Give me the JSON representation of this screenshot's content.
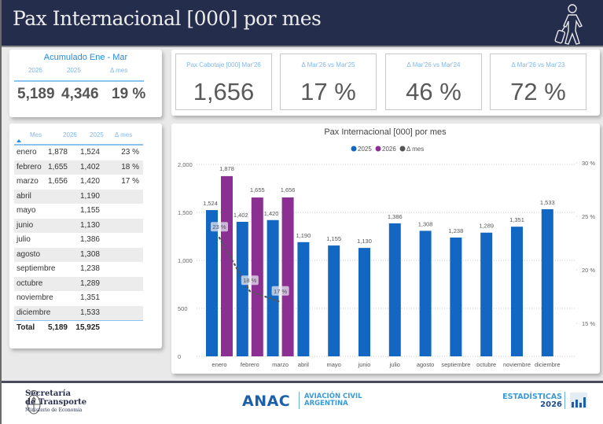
{
  "header": {
    "title": "Pax Internacional [000] por mes",
    "icon": "traveler-with-suitcase-icon"
  },
  "accumulated": {
    "title": "Acumulado Ene - Mar",
    "columns": [
      "2026",
      "2025",
      "Δ mes"
    ],
    "values": [
      "5,189",
      "4,346",
      "19 %"
    ]
  },
  "kpis": [
    {
      "label": "Pax Cabotaje [000] Mar'26",
      "value": "1,656"
    },
    {
      "label": "Δ Mar'26 vs Mar'25",
      "value": "17 %"
    },
    {
      "label": "Δ Mar'26 vs Mar'24",
      "value": "46 %"
    },
    {
      "label": "Δ Mar'26 vs Mar'23",
      "value": "72 %"
    }
  ],
  "table": {
    "columns": [
      "Mes",
      "2026",
      "2025",
      "Δ mes"
    ],
    "rows": [
      [
        "enero",
        "1,878",
        "1,524",
        "23 %"
      ],
      [
        "febrero",
        "1,655",
        "1,402",
        "18 %"
      ],
      [
        "marzo",
        "1,656",
        "1,420",
        "17 %"
      ],
      [
        "abril",
        "",
        "1,190",
        ""
      ],
      [
        "mayo",
        "",
        "1,155",
        ""
      ],
      [
        "junio",
        "",
        "1,130",
        ""
      ],
      [
        "julio",
        "",
        "1,386",
        ""
      ],
      [
        "agosto",
        "",
        "1,308",
        ""
      ],
      [
        "septiembre",
        "",
        "1,238",
        ""
      ],
      [
        "octubre",
        "",
        "1,289",
        ""
      ],
      [
        "noviembre",
        "",
        "1,351",
        ""
      ],
      [
        "diciembre",
        "",
        "1,533",
        ""
      ]
    ],
    "total": [
      "Total",
      "5,189",
      "15,925",
      ""
    ]
  },
  "chart_data": {
    "type": "bar",
    "title": "Pax Internacional [000] por mes",
    "categories": [
      "enero",
      "febrero",
      "marzo",
      "abril",
      "mayo",
      "junio",
      "julio",
      "agosto",
      "septiembre",
      "octubre",
      "noviembre",
      "diciembre"
    ],
    "series": [
      {
        "name": "2025",
        "color": "#1267c2",
        "values": [
          1524,
          1402,
          1420,
          1190,
          1155,
          1130,
          1386,
          1308,
          1238,
          1289,
          1351,
          1533
        ],
        "labels": [
          "1,524",
          "1,402",
          "1,420",
          "1,190",
          "1,155",
          "1,130",
          "1,386",
          "1,308",
          "1,238",
          "1,289",
          "1,351",
          "1,533"
        ]
      },
      {
        "name": "2026",
        "color": "#8b2f93",
        "values": [
          1878,
          1655,
          1656,
          null,
          null,
          null,
          null,
          null,
          null,
          null,
          null,
          null
        ],
        "labels": [
          "1,878",
          "1,655",
          "1,656",
          "",
          "",
          "",
          "",
          "",
          "",
          "",
          "",
          ""
        ]
      },
      {
        "name": "Δ mes",
        "color": "#555555",
        "type": "line",
        "axis": "right",
        "values": [
          23,
          18,
          17,
          null,
          null,
          null,
          null,
          null,
          null,
          null,
          null,
          null
        ],
        "labels": [
          "23 %",
          "18 %",
          "17 %",
          "",
          "",
          "",
          "",
          "",
          "",
          "",
          "",
          ""
        ]
      }
    ],
    "y_left": {
      "ticks": [
        0,
        500,
        1000,
        1500,
        2000
      ],
      "tick_labels": [
        "0",
        "500",
        "1,000",
        "1,500",
        "2,000"
      ],
      "ylim": [
        0,
        2000
      ]
    },
    "y_right": {
      "ticks": [
        15,
        20,
        25,
        30
      ],
      "tick_labels": [
        "15 %",
        "20 %",
        "25 %",
        "30 %"
      ],
      "ylim": [
        11,
        30
      ]
    },
    "legend": "top-center",
    "grid": true
  },
  "footer": {
    "secretaria_lines": [
      "Secretaría",
      "de Transporte",
      "Ministerio de Economía"
    ],
    "anac": "ANAC",
    "anac_sub": [
      "AVIACIÓN CIVIL",
      "ARGENTINA"
    ],
    "estadisticas": "ESTADÍSTICAS",
    "year": "2026"
  }
}
